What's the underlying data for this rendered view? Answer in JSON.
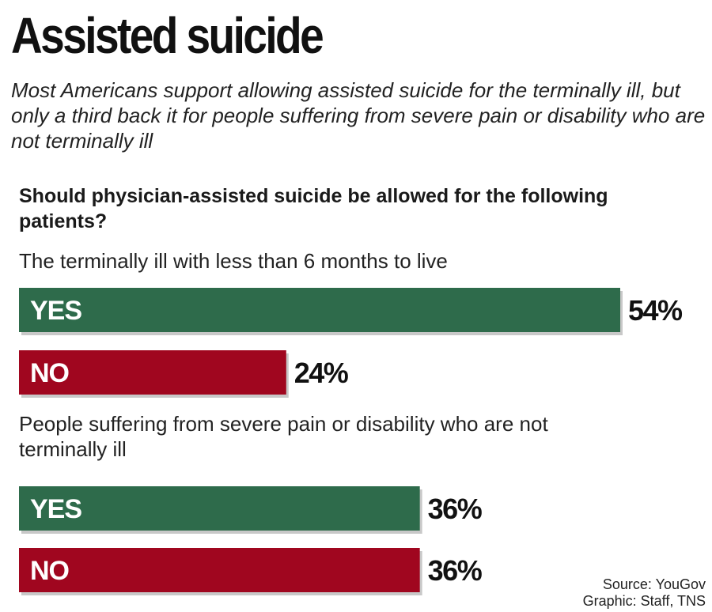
{
  "colors": {
    "yes": "#2e6b4b",
    "no": "#a0061f",
    "shadow": "#9a9a9a"
  },
  "chart_data": {
    "type": "bar",
    "orientation": "horizontal",
    "title": "Assisted suicide",
    "subtitle": "Most Americans support allowing assisted suicide for the terminally ill, but only a third back it for people suffering from severe pain or disability who are not terminally ill",
    "question": "Should physician-assisted suicide be allowed for the following patients?",
    "xlim": [
      0,
      54
    ],
    "groups": [
      {
        "label": "The terminally ill with less than 6 months to live",
        "bars": [
          {
            "label": "YES",
            "value": 54,
            "display": "54%"
          },
          {
            "label": "NO",
            "value": 24,
            "display": "24%"
          }
        ]
      },
      {
        "label": "People suffering from severe pain or disability who are not terminally ill",
        "bars": [
          {
            "label": "YES",
            "value": 36,
            "display": "36%"
          },
          {
            "label": "NO",
            "value": 36,
            "display": "36%"
          }
        ]
      }
    ]
  },
  "source": {
    "line1": "Source: YouGov",
    "line2": "Graphic: Staff, TNS"
  }
}
